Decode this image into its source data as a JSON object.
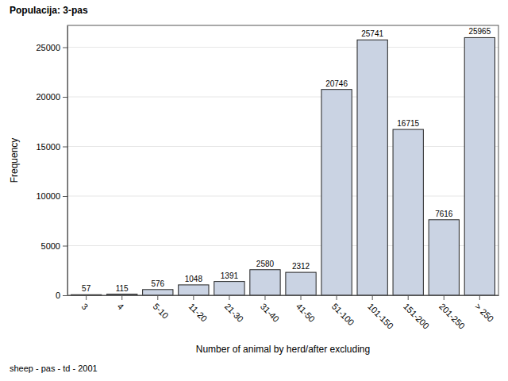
{
  "chart_data": {
    "type": "bar",
    "title": "Populacija: 3-pas",
    "x_label": "Number of animal by herd/after excluding",
    "y_label": "Frequency",
    "annotations": [
      "sheep - pas - td - 2001"
    ],
    "categories": [
      "3",
      "4",
      "5-10",
      "11-20",
      "21-30",
      "31-40",
      "41-50",
      "51-100",
      "101-150",
      "151-200",
      "201-250",
      "> 250"
    ],
    "values": [
      57,
      115,
      576,
      1048,
      1391,
      2580,
      2312,
      20746,
      25741,
      16715,
      7616,
      25965
    ],
    "color": "#cad3e3",
    "ylim": [
      0,
      27200
    ],
    "yticks": [
      0,
      5000,
      10000,
      15000,
      20000,
      25000
    ],
    "grid": true,
    "data_labels": true
  }
}
